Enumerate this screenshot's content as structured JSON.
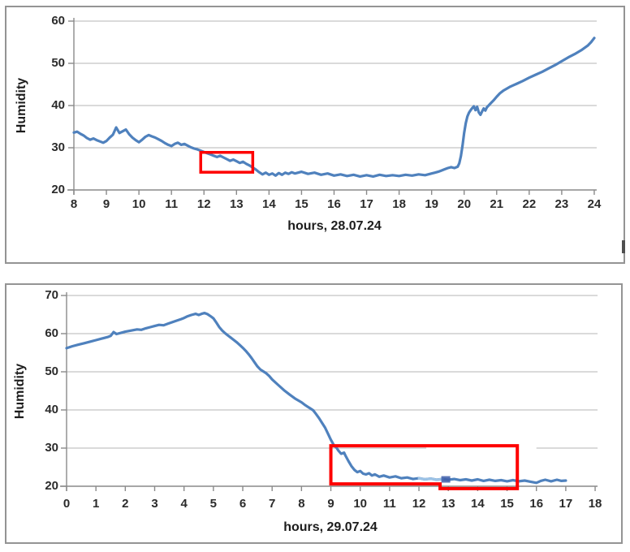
{
  "page": {
    "background": "#ffffff"
  },
  "chart_data": [
    {
      "type": "line",
      "title": "",
      "ylabel": "Humidity",
      "xlabel": "hours, 28.07.24",
      "x_ticks": [
        8,
        9,
        10,
        11,
        12,
        13,
        14,
        15,
        16,
        17,
        18,
        19,
        20,
        21,
        22,
        23,
        24
      ],
      "y_ticks": [
        60,
        50,
        40,
        30,
        20
      ],
      "xlim": [
        8,
        24
      ],
      "ylim": [
        20,
        60
      ],
      "grid": true,
      "legend": "none",
      "line_color": "#4F81BD",
      "grid_color": "#C3C3C3",
      "axis_color": "#8A8A8A",
      "annotation_color": "#FE0000",
      "series": [
        {
          "name": "Humidity 28.07.24",
          "points": [
            [
              8.0,
              33.6
            ],
            [
              8.1,
              33.8
            ],
            [
              8.2,
              33.3
            ],
            [
              8.3,
              32.9
            ],
            [
              8.4,
              32.3
            ],
            [
              8.5,
              31.9
            ],
            [
              8.6,
              32.2
            ],
            [
              8.7,
              31.8
            ],
            [
              8.8,
              31.5
            ],
            [
              8.9,
              31.2
            ],
            [
              9.0,
              31.6
            ],
            [
              9.1,
              32.4
            ],
            [
              9.2,
              33.1
            ],
            [
              9.3,
              34.8
            ],
            [
              9.4,
              33.5
            ],
            [
              9.5,
              33.9
            ],
            [
              9.6,
              34.3
            ],
            [
              9.7,
              33.2
            ],
            [
              9.8,
              32.4
            ],
            [
              9.9,
              31.8
            ],
            [
              10.0,
              31.3
            ],
            [
              10.1,
              31.9
            ],
            [
              10.2,
              32.6
            ],
            [
              10.3,
              33.0
            ],
            [
              10.4,
              32.7
            ],
            [
              10.5,
              32.4
            ],
            [
              10.6,
              32.0
            ],
            [
              10.7,
              31.6
            ],
            [
              10.8,
              31.1
            ],
            [
              10.9,
              30.7
            ],
            [
              11.0,
              30.4
            ],
            [
              11.1,
              30.9
            ],
            [
              11.2,
              31.2
            ],
            [
              11.3,
              30.7
            ],
            [
              11.4,
              30.9
            ],
            [
              11.5,
              30.5
            ],
            [
              11.6,
              30.1
            ],
            [
              11.7,
              29.8
            ],
            [
              11.8,
              29.6
            ],
            [
              11.9,
              29.3
            ],
            [
              12.0,
              29.0
            ],
            [
              12.1,
              28.7
            ],
            [
              12.2,
              28.4
            ],
            [
              12.3,
              28.1
            ],
            [
              12.4,
              27.8
            ],
            [
              12.5,
              28.1
            ],
            [
              12.6,
              27.7
            ],
            [
              12.7,
              27.3
            ],
            [
              12.8,
              26.9
            ],
            [
              12.9,
              27.2
            ],
            [
              13.0,
              26.8
            ],
            [
              13.1,
              26.4
            ],
            [
              13.2,
              26.7
            ],
            [
              13.3,
              26.2
            ],
            [
              13.4,
              25.8
            ],
            [
              13.5,
              25.3
            ],
            [
              13.6,
              24.8
            ],
            [
              13.7,
              24.2
            ],
            [
              13.8,
              23.7
            ],
            [
              13.9,
              24.1
            ],
            [
              14.0,
              23.6
            ],
            [
              14.1,
              23.9
            ],
            [
              14.2,
              23.4
            ],
            [
              14.3,
              24.0
            ],
            [
              14.4,
              23.6
            ],
            [
              14.5,
              24.1
            ],
            [
              14.6,
              23.8
            ],
            [
              14.7,
              24.2
            ],
            [
              14.8,
              23.9
            ],
            [
              15.0,
              24.3
            ],
            [
              15.2,
              23.8
            ],
            [
              15.4,
              24.1
            ],
            [
              15.6,
              23.6
            ],
            [
              15.8,
              23.9
            ],
            [
              16.0,
              23.4
            ],
            [
              16.2,
              23.7
            ],
            [
              16.4,
              23.3
            ],
            [
              16.6,
              23.6
            ],
            [
              16.8,
              23.2
            ],
            [
              17.0,
              23.5
            ],
            [
              17.2,
              23.2
            ],
            [
              17.4,
              23.6
            ],
            [
              17.6,
              23.3
            ],
            [
              17.8,
              23.5
            ],
            [
              18.0,
              23.3
            ],
            [
              18.2,
              23.6
            ],
            [
              18.4,
              23.4
            ],
            [
              18.6,
              23.7
            ],
            [
              18.8,
              23.5
            ],
            [
              19.0,
              23.9
            ],
            [
              19.1,
              24.1
            ],
            [
              19.2,
              24.3
            ],
            [
              19.3,
              24.6
            ],
            [
              19.4,
              24.9
            ],
            [
              19.5,
              25.2
            ],
            [
              19.6,
              25.4
            ],
            [
              19.7,
              25.2
            ],
            [
              19.8,
              25.5
            ],
            [
              19.85,
              26.3
            ],
            [
              19.9,
              28.0
            ],
            [
              19.95,
              30.5
            ],
            [
              20.0,
              33.5
            ],
            [
              20.05,
              35.8
            ],
            [
              20.1,
              37.4
            ],
            [
              20.15,
              38.3
            ],
            [
              20.2,
              38.9
            ],
            [
              20.25,
              39.4
            ],
            [
              20.3,
              39.8
            ],
            [
              20.35,
              38.9
            ],
            [
              20.4,
              39.7
            ],
            [
              20.45,
              38.4
            ],
            [
              20.5,
              37.8
            ],
            [
              20.55,
              38.6
            ],
            [
              20.6,
              39.3
            ],
            [
              20.65,
              38.8
            ],
            [
              20.7,
              39.6
            ],
            [
              20.8,
              40.4
            ],
            [
              20.9,
              41.2
            ],
            [
              21.0,
              42.1
            ],
            [
              21.1,
              42.9
            ],
            [
              21.2,
              43.5
            ],
            [
              21.4,
              44.4
            ],
            [
              21.6,
              45.1
            ],
            [
              21.8,
              45.8
            ],
            [
              22.0,
              46.6
            ],
            [
              22.2,
              47.3
            ],
            [
              22.4,
              48.0
            ],
            [
              22.6,
              48.8
            ],
            [
              22.8,
              49.6
            ],
            [
              23.0,
              50.5
            ],
            [
              23.2,
              51.4
            ],
            [
              23.4,
              52.2
            ],
            [
              23.6,
              53.1
            ],
            [
              23.8,
              54.2
            ],
            [
              23.9,
              55.0
            ],
            [
              24.0,
              56.0
            ]
          ]
        }
      ],
      "annotations": [
        {
          "type": "rect",
          "color": "#FE0000",
          "x1": 11.9,
          "x2": 13.5,
          "y1": 24.2,
          "y2": 28.9,
          "stroke": 3.5
        }
      ]
    },
    {
      "type": "line",
      "title": "",
      "ylabel": "Humidity",
      "xlabel": "hours, 29.07.24",
      "x_ticks": [
        0,
        1,
        2,
        3,
        4,
        5,
        6,
        7,
        8,
        9,
        10,
        11,
        12,
        13,
        14,
        15,
        16,
        17,
        18
      ],
      "y_ticks": [
        70,
        60,
        50,
        40,
        30,
        20
      ],
      "xlim": [
        0,
        18
      ],
      "ylim": [
        20,
        70
      ],
      "grid": true,
      "legend": "none",
      "line_color": "#4F81BD",
      "grid_color": "#C3C3C3",
      "axis_color": "#8A8A8A",
      "annotation_color": "#FE0000",
      "series": [
        {
          "name": "Humidity 29.07.24",
          "points": [
            [
              0.0,
              56.2
            ],
            [
              0.2,
              56.7
            ],
            [
              0.4,
              57.1
            ],
            [
              0.6,
              57.5
            ],
            [
              0.8,
              57.9
            ],
            [
              1.0,
              58.3
            ],
            [
              1.2,
              58.7
            ],
            [
              1.4,
              59.1
            ],
            [
              1.5,
              59.4
            ],
            [
              1.6,
              60.4
            ],
            [
              1.7,
              59.9
            ],
            [
              1.85,
              60.2
            ],
            [
              2.0,
              60.5
            ],
            [
              2.2,
              60.8
            ],
            [
              2.4,
              61.1
            ],
            [
              2.55,
              61.0
            ],
            [
              2.7,
              61.4
            ],
            [
              2.85,
              61.7
            ],
            [
              3.0,
              62.0
            ],
            [
              3.15,
              62.3
            ],
            [
              3.3,
              62.2
            ],
            [
              3.45,
              62.6
            ],
            [
              3.6,
              63.0
            ],
            [
              3.75,
              63.4
            ],
            [
              3.9,
              63.8
            ],
            [
              4.0,
              64.1
            ],
            [
              4.1,
              64.5
            ],
            [
              4.25,
              64.9
            ],
            [
              4.4,
              65.2
            ],
            [
              4.5,
              64.9
            ],
            [
              4.6,
              65.2
            ],
            [
              4.7,
              65.4
            ],
            [
              4.8,
              65.1
            ],
            [
              4.9,
              64.6
            ],
            [
              5.0,
              64.0
            ],
            [
              5.1,
              62.9
            ],
            [
              5.2,
              61.7
            ],
            [
              5.3,
              60.8
            ],
            [
              5.4,
              60.1
            ],
            [
              5.5,
              59.5
            ],
            [
              5.6,
              58.9
            ],
            [
              5.7,
              58.3
            ],
            [
              5.8,
              57.7
            ],
            [
              5.9,
              57.0
            ],
            [
              6.0,
              56.3
            ],
            [
              6.1,
              55.5
            ],
            [
              6.2,
              54.6
            ],
            [
              6.3,
              53.6
            ],
            [
              6.4,
              52.5
            ],
            [
              6.5,
              51.4
            ],
            [
              6.6,
              50.6
            ],
            [
              6.7,
              50.1
            ],
            [
              6.8,
              49.6
            ],
            [
              6.9,
              48.9
            ],
            [
              7.0,
              48.0
            ],
            [
              7.2,
              46.6
            ],
            [
              7.4,
              45.2
            ],
            [
              7.6,
              44.0
            ],
            [
              7.8,
              42.9
            ],
            [
              8.0,
              42.0
            ],
            [
              8.1,
              41.4
            ],
            [
              8.2,
              40.9
            ],
            [
              8.3,
              40.4
            ],
            [
              8.4,
              39.9
            ],
            [
              8.5,
              38.9
            ],
            [
              8.6,
              37.8
            ],
            [
              8.7,
              36.6
            ],
            [
              8.8,
              35.4
            ],
            [
              8.9,
              33.8
            ],
            [
              9.0,
              32.2
            ],
            [
              9.1,
              30.8
            ],
            [
              9.2,
              30.0
            ],
            [
              9.25,
              29.4
            ],
            [
              9.35,
              28.5
            ],
            [
              9.45,
              28.8
            ],
            [
              9.5,
              28.0
            ],
            [
              9.6,
              26.6
            ],
            [
              9.7,
              25.3
            ],
            [
              9.8,
              24.3
            ],
            [
              9.9,
              23.7
            ],
            [
              10.0,
              24.0
            ],
            [
              10.1,
              23.3
            ],
            [
              10.2,
              23.1
            ],
            [
              10.3,
              23.4
            ],
            [
              10.4,
              22.8
            ],
            [
              10.5,
              23.1
            ],
            [
              10.65,
              22.5
            ],
            [
              10.8,
              22.8
            ],
            [
              11.0,
              22.3
            ],
            [
              11.2,
              22.6
            ],
            [
              11.4,
              22.1
            ],
            [
              11.6,
              22.3
            ],
            [
              11.8,
              21.9
            ],
            [
              12.0,
              22.1
            ],
            [
              12.2,
              21.8
            ],
            [
              12.4,
              22.0
            ],
            [
              12.6,
              21.7
            ],
            [
              12.8,
              21.9
            ],
            [
              13.0,
              21.7
            ],
            [
              13.2,
              21.9
            ],
            [
              13.4,
              21.6
            ],
            [
              13.6,
              21.8
            ],
            [
              13.8,
              21.5
            ],
            [
              14.0,
              21.8
            ],
            [
              14.2,
              21.4
            ],
            [
              14.4,
              21.7
            ],
            [
              14.6,
              21.4
            ],
            [
              14.8,
              21.6
            ],
            [
              15.0,
              21.3
            ],
            [
              15.2,
              21.6
            ],
            [
              15.4,
              21.3
            ],
            [
              15.6,
              21.5
            ],
            [
              15.8,
              21.2
            ],
            [
              16.0,
              20.9
            ],
            [
              16.15,
              21.4
            ],
            [
              16.3,
              21.7
            ],
            [
              16.5,
              21.3
            ],
            [
              16.7,
              21.7
            ],
            [
              16.85,
              21.4
            ],
            [
              17.0,
              21.5
            ]
          ]
        }
      ],
      "annotations": [
        {
          "type": "gridline-gap",
          "y": 30,
          "x1": 12.25,
          "x2": 16.0
        },
        {
          "type": "highlight",
          "color": "#9DC3E6",
          "x1": 12.0,
          "x2": 12.8
        },
        {
          "type": "rect-notched",
          "color": "#FE0000",
          "x1": 9.0,
          "x2": 15.35,
          "y1": 20.6,
          "y2": 30.6,
          "step_x": 12.72,
          "y1_right": 19.4,
          "stroke": 4
        },
        {
          "type": "marker",
          "color": "#3E5EA9",
          "x": 12.9,
          "y": 21.8
        }
      ]
    }
  ]
}
